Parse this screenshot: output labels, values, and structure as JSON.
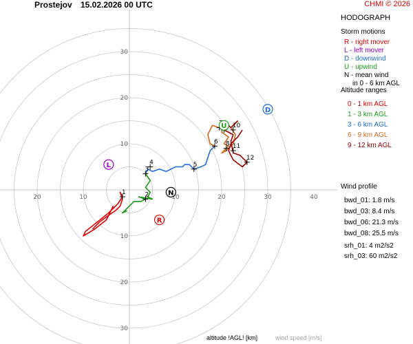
{
  "header": {
    "station": "Prostejov",
    "datetime": "15.02.2026 00 UTC",
    "copyright": "CHMI © 2026"
  },
  "panel": {
    "title": "HODOGRAPH",
    "storm_motions_title": "Storm motions",
    "storm_motions": [
      {
        "text": "R - right mover",
        "color": "#e00000"
      },
      {
        "text": "L - left mover",
        "color": "#9900cc"
      },
      {
        "text": "D - downwind",
        "color": "#1f6fd6"
      },
      {
        "text": "U - upwind",
        "color": "#1a9a1a"
      },
      {
        "text": "N - mean wind",
        "color": "#000000"
      },
      {
        "text": "in 0 - 6 km AGL",
        "color": "#000000"
      }
    ],
    "altitude_title": "Altitude ranges",
    "altitude_ranges": [
      {
        "text": "0 - 1 km AGL",
        "color": "#e00000"
      },
      {
        "text": "1 - 3 km AGL",
        "color": "#1a9a1a"
      },
      {
        "text": "3 - 6 km AGL",
        "color": "#1f6fd6"
      },
      {
        "text": "6 - 9 km AGL",
        "color": "#d2691e"
      },
      {
        "text": "9 - 12 km AGL",
        "color": "#a00000"
      }
    ],
    "wind_profile_title": "Wind profile",
    "wind_profile": [
      "bwd_01: 1.8 m/s",
      "bwd_03: 8.4 m/s",
      "bwd_06: 21.3 m/s",
      "bwd_08: 25.5 m/s",
      "srh_01: 4 m2/s2",
      "srh_03: 60 m2/s2"
    ]
  },
  "footer": {
    "altitude_label": "altitude !AGL! [km]",
    "speed_label": "wind speed [m/s]"
  },
  "chart_data": {
    "type": "line",
    "ring_step": 5,
    "ring_max": 35,
    "x_tick_labels": [
      "20",
      "10",
      "10",
      "20",
      "30",
      "40"
    ],
    "x_tick_values": [
      -20,
      -10,
      10,
      20,
      30,
      40
    ],
    "y_tick_labels": [
      "30",
      "20",
      "10",
      "10",
      "20",
      "30"
    ],
    "y_tick_values": [
      30,
      20,
      10,
      -10,
      -20,
      -30
    ],
    "series": [
      {
        "color": "#e00000",
        "points": [
          [
            -3.5,
            -3.5
          ],
          [
            -5,
            -6.5
          ],
          [
            -7.5,
            -8.5
          ],
          [
            -10,
            -10
          ],
          [
            -9.5,
            -9
          ],
          [
            -7,
            -7
          ],
          [
            -4.5,
            -5
          ],
          [
            -2.5,
            -3
          ],
          [
            -1.5,
            -1.5
          ],
          [
            -2,
            -0.5
          ],
          [
            -1.5,
            -2
          ],
          [
            -2,
            -3.5
          ],
          [
            -3,
            -4.5
          ],
          [
            -4.5,
            -5.5
          ],
          [
            -6.5,
            -7
          ],
          [
            -8,
            -8.5
          ]
        ]
      },
      {
        "color": "#1a9a1a",
        "points": [
          [
            -0.5,
            -4.5
          ],
          [
            -1.5,
            -5
          ],
          [
            0,
            -3.5
          ],
          [
            1,
            -2.5
          ],
          [
            2.5,
            -2.5
          ],
          [
            3.5,
            -2
          ],
          [
            2,
            -1.5
          ],
          [
            5,
            -2
          ],
          [
            4,
            -1.5
          ],
          [
            4.5,
            -0.5
          ],
          [
            3.5,
            0.5
          ],
          [
            4.5,
            2
          ],
          [
            3.5,
            3.5
          ]
        ]
      },
      {
        "color": "#1f6fd6",
        "points": [
          [
            3.5,
            3.5
          ],
          [
            4,
            4.5
          ],
          [
            5,
            4
          ],
          [
            6.5,
            4.5
          ],
          [
            8,
            4
          ],
          [
            9,
            4.5
          ],
          [
            10,
            5
          ],
          [
            11.5,
            5
          ],
          [
            12,
            5.5
          ],
          [
            13,
            5.5
          ],
          [
            14,
            4.5
          ],
          [
            15.5,
            5
          ],
          [
            16.5,
            5.5
          ],
          [
            17,
            7
          ],
          [
            17.5,
            8.5
          ],
          [
            18.5,
            9.5
          ]
        ]
      },
      {
        "color": "#d2691e",
        "points": [
          [
            18.5,
            9.5
          ],
          [
            17.5,
            10
          ],
          [
            17,
            12
          ],
          [
            18,
            14
          ],
          [
            19.5,
            13.5
          ],
          [
            20.5,
            15
          ],
          [
            20,
            12.5
          ],
          [
            21.5,
            11.5
          ],
          [
            20.5,
            10
          ],
          [
            21.5,
            9.5
          ],
          [
            20,
            8
          ],
          [
            21,
            8.5
          ],
          [
            22.5,
            10
          ],
          [
            23,
            12
          ],
          [
            22,
            13.5
          ],
          [
            23.5,
            15
          ]
        ]
      },
      {
        "color": "#a00000",
        "points": [
          [
            23.5,
            15
          ],
          [
            22,
            13.5
          ],
          [
            21,
            14.5
          ],
          [
            20.5,
            13
          ],
          [
            22.5,
            12
          ],
          [
            22,
            10.5
          ],
          [
            22.5,
            8
          ],
          [
            24,
            7.5
          ],
          [
            25.5,
            6
          ],
          [
            24.5,
            5
          ],
          [
            22.5,
            6.5
          ],
          [
            21.5,
            8.5
          ],
          [
            22,
            10
          ],
          [
            23.5,
            11.5
          ],
          [
            24.5,
            13
          ]
        ]
      }
    ],
    "height_markers": [
      {
        "label": "1",
        "x": -1.5,
        "y": -1.5
      },
      {
        "label": "2",
        "x": 3.5,
        "y": -2
      },
      {
        "label": "3",
        "x": 3.5,
        "y": 3.5
      },
      {
        "label": "4",
        "x": 4.5,
        "y": 5
      },
      {
        "label": "5",
        "x": 14,
        "y": 4.5
      },
      {
        "label": "6",
        "x": 18.5,
        "y": 9.5
      },
      {
        "label": "7",
        "x": 19.5,
        "y": 13.5
      },
      {
        "label": "8",
        "x": 21,
        "y": 9
      },
      {
        "label": "9",
        "x": 20.5,
        "y": 13
      },
      {
        "label": "10",
        "x": 22.5,
        "y": 13
      },
      {
        "label": "11",
        "x": 22.5,
        "y": 8.5
      },
      {
        "label": "12",
        "x": 25.5,
        "y": 6
      }
    ],
    "storm_markers": [
      {
        "label": "R",
        "x": 6.5,
        "y": -6.5,
        "color": "#e00000"
      },
      {
        "label": "L",
        "x": -4.5,
        "y": 5.5,
        "color": "#9900cc"
      },
      {
        "label": "D",
        "x": 30,
        "y": 17.5,
        "color": "#1f6fd6"
      },
      {
        "label": "U",
        "x": 20.5,
        "y": 14,
        "color": "#1a9a1a"
      },
      {
        "label": "N",
        "x": 9,
        "y": -0.5,
        "color": "#000000"
      }
    ]
  }
}
